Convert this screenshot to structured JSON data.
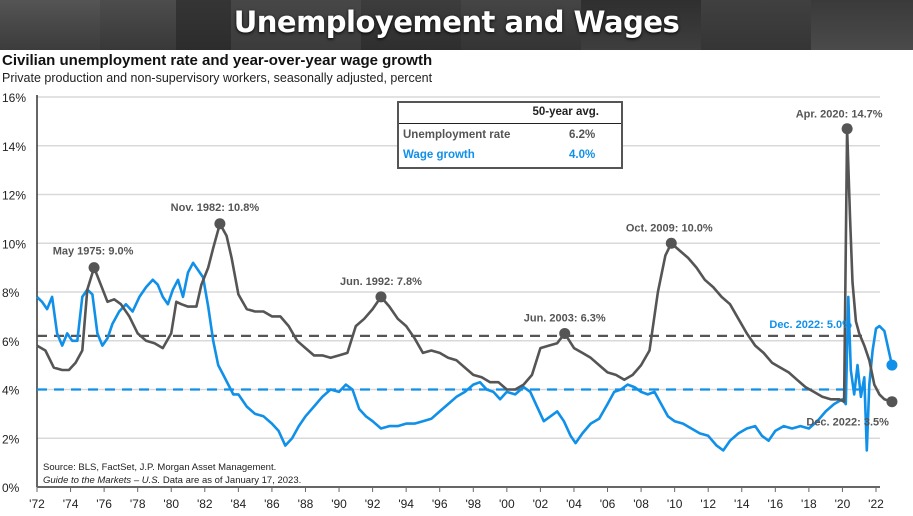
{
  "banner": {
    "title": "Unemployement and Wages"
  },
  "chart_data": {
    "type": "line",
    "title": "Civilian unemployment rate and year-over-year wage growth",
    "subtitle": "Private production and non-supervisory workers, seasonally adjusted, percent",
    "xlabel": "",
    "ylabel": "",
    "xlim": [
      1972,
      2023
    ],
    "ylim": [
      0,
      16
    ],
    "y_ticks": [
      "0%",
      "2%",
      "4%",
      "6%",
      "8%",
      "10%",
      "12%",
      "14%",
      "16%"
    ],
    "x_ticks": [
      "'72",
      "'74",
      "'76",
      "'78",
      "'80",
      "'82",
      "'84",
      "'86",
      "'88",
      "'90",
      "'92",
      "'94",
      "'96",
      "'98",
      "'00",
      "'02",
      "'04",
      "'06",
      "'08",
      "'10",
      "'12",
      "'14",
      "'16",
      "'18",
      "'20",
      "'22"
    ],
    "grid": true,
    "legend_table": {
      "header": "50-year avg.",
      "rows": [
        {
          "label": "Unemployment rate",
          "value": "6.2%",
          "color": "#555555"
        },
        {
          "label": "Wage growth",
          "value": "4.0%",
          "color": "#1090e8"
        }
      ]
    },
    "averages": [
      {
        "series": "Unemployment rate",
        "value": 6.2,
        "color": "#555555"
      },
      {
        "series": "Wage growth",
        "value": 4.0,
        "color": "#1090e8"
      }
    ],
    "series": [
      {
        "name": "Unemployment rate",
        "color": "#555555",
        "x": [
          1972.0,
          1972.5,
          1973.0,
          1973.5,
          1973.9,
          1974.3,
          1974.7,
          1975.0,
          1975.4,
          1975.8,
          1976.2,
          1976.6,
          1977.0,
          1977.5,
          1978.0,
          1978.5,
          1979.0,
          1979.5,
          1980.0,
          1980.3,
          1980.6,
          1981.0,
          1981.5,
          1981.8,
          1982.2,
          1982.5,
          1982.9,
          1983.3,
          1983.6,
          1984.0,
          1984.5,
          1985.0,
          1985.5,
          1986.0,
          1986.5,
          1987.0,
          1987.5,
          1988.0,
          1988.5,
          1989.0,
          1989.5,
          1990.0,
          1990.5,
          1991.0,
          1991.5,
          1992.0,
          1992.5,
          1993.0,
          1993.5,
          1994.0,
          1994.5,
          1995.0,
          1995.5,
          1996.0,
          1996.5,
          1997.0,
          1997.5,
          1998.0,
          1998.5,
          1999.0,
          1999.5,
          2000.0,
          2000.5,
          2001.0,
          2001.5,
          2002.0,
          2002.5,
          2003.0,
          2003.45,
          2004.0,
          2004.5,
          2005.0,
          2005.5,
          2006.0,
          2006.5,
          2007.0,
          2007.5,
          2008.0,
          2008.5,
          2009.0,
          2009.45,
          2009.8,
          2010.3,
          2010.8,
          2011.3,
          2011.8,
          2012.3,
          2012.8,
          2013.3,
          2013.8,
          2014.3,
          2014.8,
          2015.3,
          2015.8,
          2016.3,
          2016.8,
          2017.3,
          2017.8,
          2018.3,
          2018.8,
          2019.3,
          2019.8,
          2020.1,
          2020.28,
          2020.45,
          2020.6,
          2020.8,
          2021.0,
          2021.3,
          2021.6,
          2021.9,
          2022.2,
          2022.5,
          2022.95
        ],
        "values": [
          5.8,
          5.6,
          4.9,
          4.8,
          4.8,
          5.1,
          5.6,
          8.1,
          9.0,
          8.3,
          7.6,
          7.7,
          7.5,
          7.0,
          6.3,
          6.0,
          5.9,
          5.7,
          6.3,
          7.6,
          7.5,
          7.4,
          7.4,
          8.3,
          9.0,
          9.8,
          10.8,
          10.3,
          9.4,
          7.9,
          7.3,
          7.2,
          7.2,
          7.0,
          7.0,
          6.6,
          6.0,
          5.7,
          5.4,
          5.4,
          5.3,
          5.4,
          5.5,
          6.6,
          6.9,
          7.3,
          7.8,
          7.4,
          6.9,
          6.6,
          6.1,
          5.5,
          5.6,
          5.5,
          5.3,
          5.2,
          4.9,
          4.6,
          4.5,
          4.3,
          4.3,
          4.0,
          4.0,
          4.2,
          4.6,
          5.7,
          5.8,
          5.9,
          6.3,
          5.7,
          5.5,
          5.3,
          5.0,
          4.7,
          4.6,
          4.4,
          4.6,
          5.0,
          5.6,
          8.0,
          9.5,
          10.0,
          9.7,
          9.4,
          9.0,
          8.5,
          8.2,
          7.8,
          7.5,
          6.9,
          6.3,
          5.8,
          5.5,
          5.1,
          4.9,
          4.7,
          4.4,
          4.1,
          3.9,
          3.7,
          3.6,
          3.6,
          3.5,
          14.7,
          11.1,
          8.4,
          6.8,
          6.3,
          5.8,
          5.2,
          4.2,
          3.8,
          3.6,
          3.5
        ]
      },
      {
        "name": "Wage growth",
        "color": "#1090e8",
        "x": [
          1972.0,
          1972.3,
          1972.6,
          1972.9,
          1973.2,
          1973.5,
          1973.8,
          1974.1,
          1974.4,
          1974.7,
          1975.0,
          1975.3,
          1975.6,
          1975.9,
          1976.2,
          1976.5,
          1976.9,
          1977.3,
          1977.7,
          1978.1,
          1978.5,
          1978.9,
          1979.2,
          1979.5,
          1979.8,
          1980.1,
          1980.4,
          1980.7,
          1981.0,
          1981.3,
          1981.6,
          1981.9,
          1982.2,
          1982.5,
          1982.8,
          1983.1,
          1983.4,
          1983.7,
          1984.0,
          1984.5,
          1985.0,
          1985.5,
          1986.0,
          1986.4,
          1986.8,
          1987.2,
          1987.6,
          1988.0,
          1988.5,
          1989.0,
          1989.5,
          1990.0,
          1990.4,
          1990.8,
          1991.2,
          1991.6,
          1992.0,
          1992.5,
          1993.0,
          1993.5,
          1994.0,
          1994.5,
          1995.0,
          1995.5,
          1996.0,
          1996.5,
          1997.0,
          1997.5,
          1998.0,
          1998.4,
          1998.8,
          1999.2,
          1999.6,
          2000.0,
          2000.5,
          2001.0,
          2001.4,
          2001.8,
          2002.2,
          2002.6,
          2003.0,
          2003.4,
          2003.8,
          2004.1,
          2004.5,
          2005.0,
          2005.5,
          2006.0,
          2006.4,
          2006.8,
          2007.2,
          2007.6,
          2008.0,
          2008.4,
          2008.8,
          2009.2,
          2009.6,
          2010.0,
          2010.5,
          2011.0,
          2011.5,
          2012.0,
          2012.5,
          2012.9,
          2013.3,
          2013.8,
          2014.3,
          2014.8,
          2015.2,
          2015.6,
          2016.0,
          2016.5,
          2017.0,
          2017.5,
          2018.0,
          2018.5,
          2019.0,
          2019.5,
          2020.0,
          2020.2,
          2020.35,
          2020.5,
          2020.7,
          2020.9,
          2021.1,
          2021.3,
          2021.45,
          2021.6,
          2021.8,
          2022.0,
          2022.2,
          2022.5,
          2022.95
        ],
        "values": [
          7.8,
          7.6,
          7.3,
          7.8,
          6.3,
          5.8,
          6.3,
          6.0,
          6.0,
          7.8,
          8.1,
          7.9,
          6.3,
          5.8,
          6.1,
          6.7,
          7.2,
          7.5,
          7.2,
          7.8,
          8.2,
          8.5,
          8.3,
          7.8,
          7.5,
          8.1,
          8.5,
          7.8,
          8.8,
          9.2,
          8.9,
          8.6,
          7.4,
          6.0,
          5.0,
          4.6,
          4.2,
          3.8,
          3.8,
          3.3,
          3.0,
          2.9,
          2.6,
          2.3,
          1.7,
          2.0,
          2.5,
          2.9,
          3.3,
          3.7,
          4.0,
          3.9,
          4.2,
          4.0,
          3.2,
          2.9,
          2.7,
          2.4,
          2.5,
          2.5,
          2.6,
          2.6,
          2.7,
          2.8,
          3.1,
          3.4,
          3.7,
          3.9,
          4.2,
          4.3,
          4.0,
          3.9,
          3.6,
          3.9,
          3.8,
          4.1,
          3.9,
          3.3,
          2.7,
          2.9,
          3.1,
          2.7,
          2.1,
          1.8,
          2.2,
          2.6,
          2.8,
          3.4,
          3.9,
          4.0,
          4.2,
          4.1,
          3.9,
          3.8,
          3.9,
          3.4,
          2.9,
          2.7,
          2.6,
          2.4,
          2.2,
          2.1,
          1.7,
          1.5,
          1.9,
          2.2,
          2.4,
          2.5,
          2.1,
          1.9,
          2.3,
          2.5,
          2.4,
          2.5,
          2.4,
          2.7,
          3.1,
          3.4,
          3.6,
          3.4,
          7.8,
          4.8,
          3.8,
          5.0,
          3.7,
          4.5,
          1.5,
          4.2,
          5.6,
          6.5,
          6.6,
          6.4,
          5.0
        ]
      }
    ],
    "annotations": [
      {
        "series": "Unemployment rate",
        "x": 1975.4,
        "y": 9.0,
        "label": "May 1975: 9.0%",
        "color": "#555555"
      },
      {
        "series": "Unemployment rate",
        "x": 1982.9,
        "y": 10.8,
        "label": "Nov. 1982: 10.8%",
        "color": "#555555"
      },
      {
        "series": "Unemployment rate",
        "x": 1992.5,
        "y": 7.8,
        "label": "Jun. 1992: 7.8%",
        "color": "#555555"
      },
      {
        "series": "Unemployment rate",
        "x": 2003.45,
        "y": 6.3,
        "label": "Jun. 2003: 6.3%",
        "color": "#555555"
      },
      {
        "series": "Unemployment rate",
        "x": 2009.8,
        "y": 10.0,
        "label": "Oct. 2009: 10.0%",
        "color": "#555555"
      },
      {
        "series": "Unemployment rate",
        "x": 2020.28,
        "y": 14.7,
        "label": "Apr. 2020: 14.7%",
        "color": "#555555"
      },
      {
        "series": "Wage growth",
        "x": 2022.95,
        "y": 5.0,
        "label": "Dec. 2022: 5.0%",
        "color": "#1090e8"
      },
      {
        "series": "Unemployment rate",
        "x": 2022.95,
        "y": 3.5,
        "label": "Dec. 2022: 3.5%",
        "color": "#555555"
      }
    ]
  },
  "source": {
    "line1": "Source: BLS, FactSet, J.P. Morgan Asset Management.",
    "line2_italic": "Guide to the Markets – U.S.",
    "line2_rest": " Data are as of January 17, 2023."
  }
}
